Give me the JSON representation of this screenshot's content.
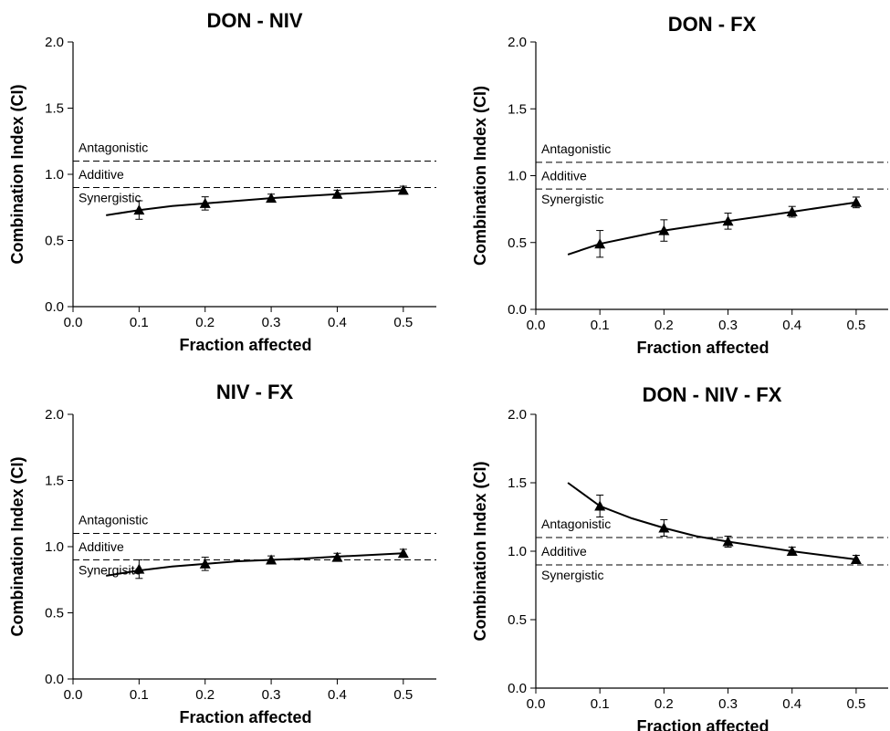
{
  "chart_data": [
    {
      "type": "line",
      "title": "DON - NIV",
      "xlabel": "Fraction affected",
      "ylabel": "Combination Index (CI)",
      "xlim": [
        0.0,
        0.55
      ],
      "ylim": [
        0.0,
        2.0
      ],
      "xticks": [
        "0.0",
        "0.1",
        "0.2",
        "0.3",
        "0.4",
        "0.5"
      ],
      "yticks": [
        "0.0",
        "0.5",
        "1.0",
        "1.5",
        "2.0"
      ],
      "reference_lines": [
        1.1,
        0.9
      ],
      "region_labels": [
        "Antagonistic",
        "Additive",
        "Synergistic"
      ],
      "points": {
        "x": [
          0.1,
          0.2,
          0.3,
          0.4,
          0.5
        ],
        "y": [
          0.73,
          0.78,
          0.82,
          0.85,
          0.88
        ],
        "error": [
          0.07,
          0.05,
          0.03,
          0.03,
          0.03
        ]
      },
      "fit_curve": {
        "x": [
          0.05,
          0.1,
          0.15,
          0.2,
          0.25,
          0.3,
          0.35,
          0.4,
          0.45,
          0.5
        ],
        "y": [
          0.69,
          0.73,
          0.76,
          0.78,
          0.8,
          0.82,
          0.835,
          0.85,
          0.865,
          0.88
        ]
      }
    },
    {
      "type": "line",
      "title": "DON - FX",
      "xlabel": "Fraction affected",
      "ylabel": "Combination Index (CI)",
      "xlim": [
        0.0,
        0.55
      ],
      "ylim": [
        0.0,
        2.0
      ],
      "xticks": [
        "0.0",
        "0.1",
        "0.2",
        "0.3",
        "0.4",
        "0.5"
      ],
      "yticks": [
        "0.0",
        "0.5",
        "1.0",
        "1.5",
        "2.0"
      ],
      "reference_lines": [
        1.1,
        0.9
      ],
      "region_labels": [
        "Antagonistic",
        "Additive",
        "Synergistic"
      ],
      "points": {
        "x": [
          0.1,
          0.2,
          0.3,
          0.4,
          0.5
        ],
        "y": [
          0.49,
          0.59,
          0.66,
          0.73,
          0.8
        ],
        "error": [
          0.1,
          0.08,
          0.06,
          0.04,
          0.04
        ]
      },
      "fit_curve": {
        "x": [
          0.05,
          0.1,
          0.15,
          0.2,
          0.25,
          0.3,
          0.35,
          0.4,
          0.45,
          0.5
        ],
        "y": [
          0.41,
          0.49,
          0.54,
          0.59,
          0.625,
          0.66,
          0.695,
          0.73,
          0.765,
          0.8
        ]
      }
    },
    {
      "type": "line",
      "title": "NIV - FX",
      "xlabel": "Fraction affected",
      "ylabel": "Combination Index (CI)",
      "xlim": [
        0.0,
        0.55
      ],
      "ylim": [
        0.0,
        2.0
      ],
      "xticks": [
        "0.0",
        "0.1",
        "0.2",
        "0.3",
        "0.4",
        "0.5"
      ],
      "yticks": [
        "0.0",
        "0.5",
        "1.0",
        "1.5",
        "2.0"
      ],
      "reference_lines": [
        1.1,
        0.9
      ],
      "region_labels": [
        "Antagonistic",
        "Additive",
        "Synergisitc"
      ],
      "points": {
        "x": [
          0.1,
          0.2,
          0.3,
          0.4,
          0.5
        ],
        "y": [
          0.83,
          0.87,
          0.9,
          0.92,
          0.95
        ],
        "error": [
          0.07,
          0.05,
          0.03,
          0.03,
          0.03
        ]
      },
      "fit_curve": {
        "x": [
          0.05,
          0.1,
          0.15,
          0.2,
          0.25,
          0.3,
          0.35,
          0.4,
          0.45,
          0.5
        ],
        "y": [
          0.78,
          0.82,
          0.85,
          0.87,
          0.89,
          0.9,
          0.91,
          0.925,
          0.937,
          0.95
        ]
      }
    },
    {
      "type": "line",
      "title": "DON - NIV - FX",
      "xlabel": "Fraction affected",
      "ylabel": "Combination Index (CI)",
      "xlim": [
        0.0,
        0.55
      ],
      "ylim": [
        0.0,
        2.0
      ],
      "xticks": [
        "0.0",
        "0.1",
        "0.2",
        "0.3",
        "0.4",
        "0.5"
      ],
      "yticks": [
        "0.0",
        "0.5",
        "1.0",
        "1.5",
        "2.0"
      ],
      "reference_lines": [
        1.1,
        0.9
      ],
      "region_labels": [
        "Antagonistic",
        "Additive",
        "Synergistic"
      ],
      "points": {
        "x": [
          0.1,
          0.2,
          0.3,
          0.4,
          0.5
        ],
        "y": [
          1.33,
          1.17,
          1.07,
          1.0,
          0.94
        ],
        "error": [
          0.08,
          0.06,
          0.04,
          0.03,
          0.03
        ]
      },
      "fit_curve": {
        "x": [
          0.05,
          0.1,
          0.15,
          0.2,
          0.25,
          0.3,
          0.35,
          0.4,
          0.45,
          0.5
        ],
        "y": [
          1.5,
          1.33,
          1.24,
          1.17,
          1.11,
          1.07,
          1.035,
          1.0,
          0.97,
          0.94
        ]
      }
    }
  ]
}
